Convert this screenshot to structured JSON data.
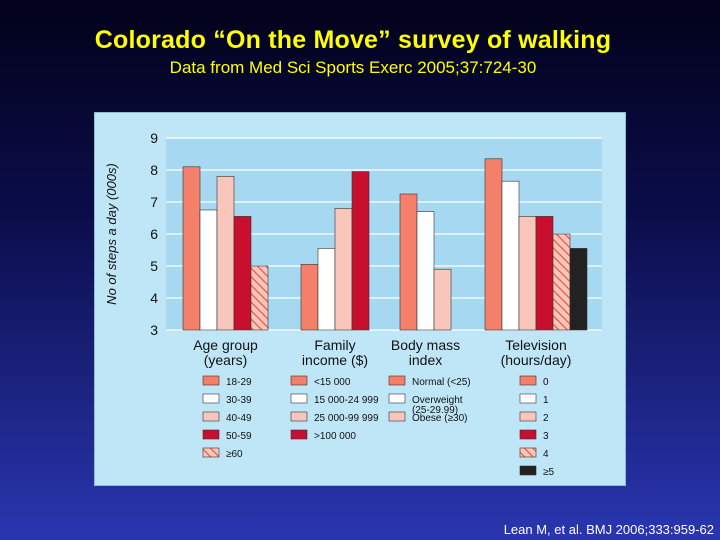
{
  "slide": {
    "title": "Colorado “On the Move” survey of walking",
    "subtitle": "Data from Med Sci Sports Exerc 2005;37:724-30",
    "citation": "Lean M, et al. BMJ 2006;333:959-62"
  },
  "chart_data": {
    "type": "bar",
    "ylabel": "No of steps a day (000s)",
    "ylim": [
      3,
      9
    ],
    "yticks": [
      3,
      4,
      5,
      6,
      7,
      8,
      9
    ],
    "grid": true,
    "groups": [
      {
        "label": [
          "Age group",
          "(years)"
        ],
        "bars": [
          {
            "name": "18-29",
            "value": 8.1,
            "color": "#f4806a"
          },
          {
            "name": "30-39",
            "value": 6.75,
            "color": "#ffffff"
          },
          {
            "name": "40-49",
            "value": 7.8,
            "color": "#f9c6bc"
          },
          {
            "name": "50-59",
            "value": 6.55,
            "color": "#c8102e"
          },
          {
            "name": "≥60",
            "value": 5.0,
            "color": "#f4806a",
            "hatch": true
          }
        ]
      },
      {
        "label": [
          "Family",
          "income ($)"
        ],
        "bars": [
          {
            "name": "<15 000",
            "value": 5.05,
            "color": "#f4806a"
          },
          {
            "name": "15 000-24 999",
            "value": 5.55,
            "color": "#ffffff"
          },
          {
            "name": "25 000-99 999",
            "value": 6.8,
            "color": "#f9c6bc"
          },
          {
            "name": ">100 000",
            "value": 7.95,
            "color": "#c8102e"
          }
        ]
      },
      {
        "label": [
          "Body mass",
          "index"
        ],
        "bars": [
          {
            "name": [
              "Normal (<25)"
            ],
            "value": 7.25,
            "color": "#f4806a"
          },
          {
            "name": [
              "Overweight",
              "(25-29.99)"
            ],
            "value": 6.7,
            "color": "#ffffff"
          },
          {
            "name": [
              "Obese (≥30)"
            ],
            "value": 4.9,
            "color": "#f9c6bc"
          }
        ]
      },
      {
        "label": [
          "Television",
          "(hours/day)"
        ],
        "bars": [
          {
            "name": "0",
            "value": 8.35,
            "color": "#f4806a"
          },
          {
            "name": "1",
            "value": 7.65,
            "color": "#ffffff"
          },
          {
            "name": "2",
            "value": 6.55,
            "color": "#f9c6bc"
          },
          {
            "name": "3",
            "value": 6.55,
            "color": "#c8102e"
          },
          {
            "name": "4",
            "value": 6.0,
            "color": "#f4806a",
            "hatch": true
          },
          {
            "name": "≥5",
            "value": 5.55,
            "color": "#222222"
          }
        ]
      }
    ]
  }
}
